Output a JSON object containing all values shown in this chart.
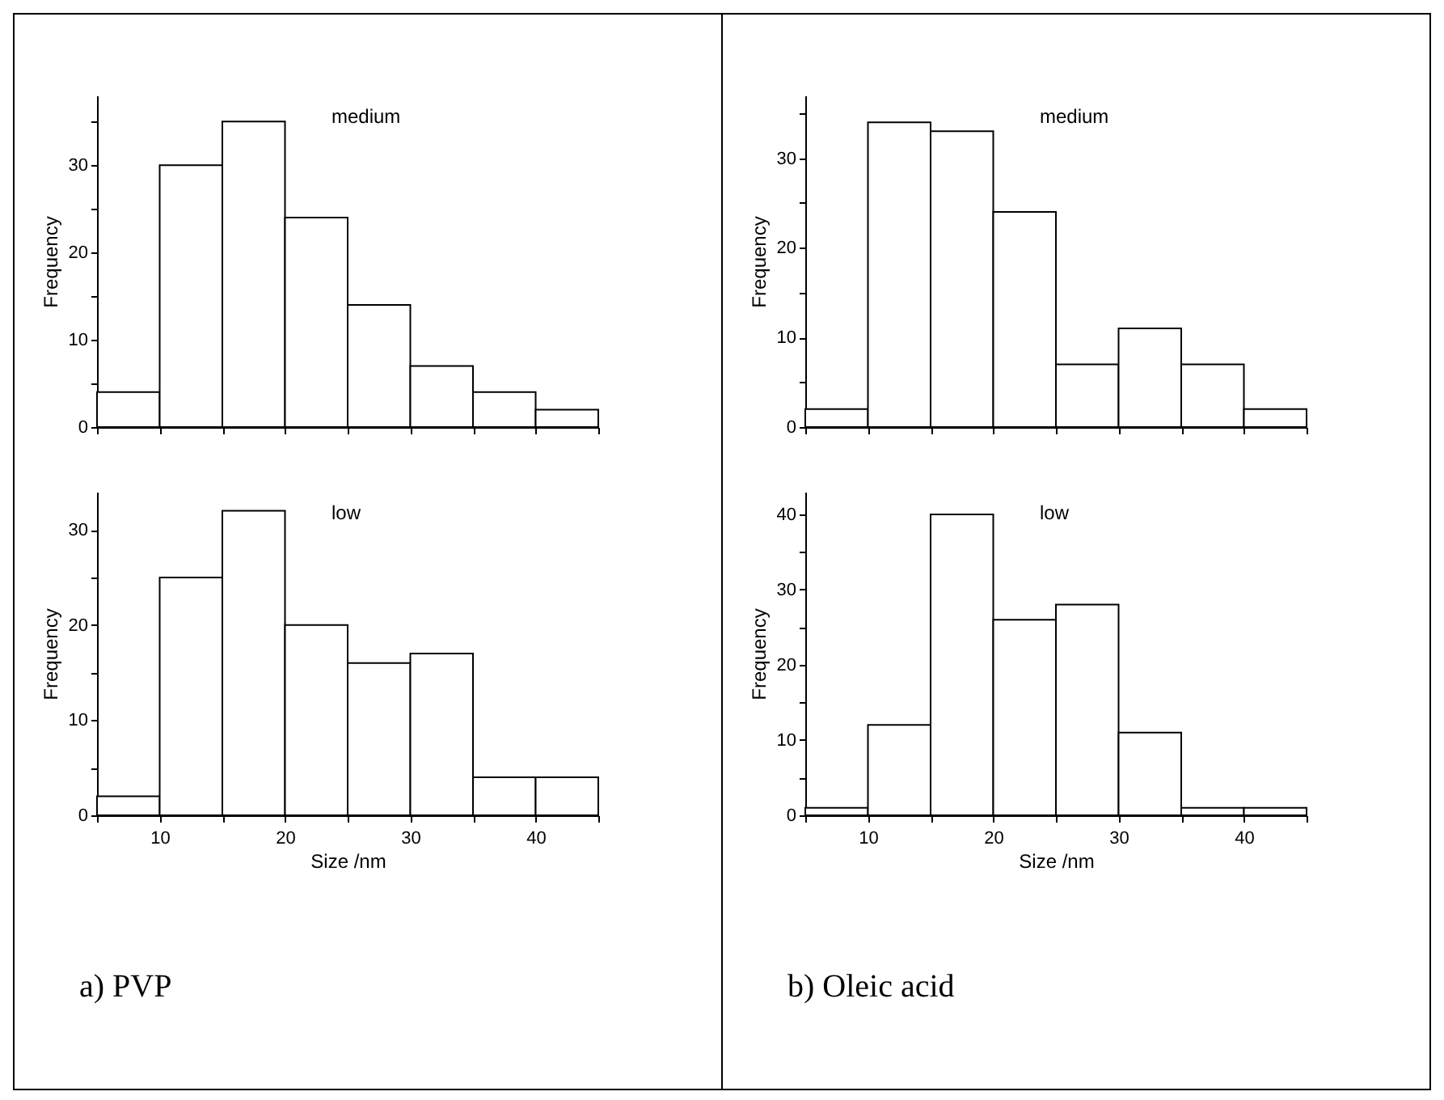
{
  "chart_data": [
    {
      "type": "histogram",
      "bins": [
        5,
        10,
        15,
        20,
        25,
        30,
        35,
        40,
        45
      ],
      "values": [
        4,
        30,
        35,
        24,
        14,
        7,
        4,
        2
      ],
      "color": "#ffffff",
      "ylabel": "Frequency",
      "annotations": [
        "medium"
      ],
      "xlim": [
        5,
        45
      ],
      "ylim": [
        0,
        38
      ],
      "xticks": [
        {
          "value": 5,
          "label": null
        },
        10,
        {
          "value": 15,
          "label": null
        },
        20,
        {
          "value": 25,
          "label": null
        },
        30,
        {
          "value": 35,
          "label": null
        },
        40,
        {
          "value": 45,
          "label": null
        }
      ],
      "yticks": [
        0,
        {
          "value": 5,
          "label": null
        },
        10,
        {
          "value": 15,
          "label": null
        },
        20,
        {
          "value": 25,
          "label": null
        },
        30,
        {
          "value": 35,
          "label": null
        }
      ],
      "tick_labels": "y",
      "grid": false
    },
    {
      "type": "histogram",
      "bins": [
        5,
        10,
        15,
        20,
        25,
        30,
        35,
        40,
        45
      ],
      "values": [
        2,
        25,
        32,
        20,
        16,
        17,
        4,
        4
      ],
      "color": "#ffffff",
      "xlabel": "Size /nm",
      "ylabel": "Frequency",
      "annotations": [
        "low",
        "a)  PVP"
      ],
      "xlim": [
        5,
        45
      ],
      "ylim": [
        0,
        34
      ],
      "xticks": [
        {
          "value": 5,
          "label": null
        },
        10,
        {
          "value": 15,
          "label": null
        },
        20,
        {
          "value": 25,
          "label": null
        },
        30,
        {
          "value": 35,
          "label": null
        },
        40,
        {
          "value": 45,
          "label": null
        }
      ],
      "yticks": [
        0,
        {
          "value": 5,
          "label": null
        },
        10,
        {
          "value": 15,
          "label": null
        },
        20,
        {
          "value": 25,
          "label": null
        },
        30
      ],
      "grid": false
    },
    {
      "type": "histogram",
      "bins": [
        5,
        10,
        15,
        20,
        25,
        30,
        35,
        40,
        45
      ],
      "values": [
        2,
        34,
        33,
        24,
        7,
        11,
        7,
        2
      ],
      "color": "#ffffff",
      "ylabel": "Frequency",
      "annotations": [
        "medium"
      ],
      "xlim": [
        5,
        45
      ],
      "ylim": [
        0,
        37
      ],
      "xticks": [
        {
          "value": 5,
          "label": null
        },
        10,
        {
          "value": 15,
          "label": null
        },
        20,
        {
          "value": 25,
          "label": null
        },
        30,
        {
          "value": 35,
          "label": null
        },
        40,
        {
          "value": 45,
          "label": null
        }
      ],
      "yticks": [
        0,
        {
          "value": 5,
          "label": null
        },
        10,
        {
          "value": 15,
          "label": null
        },
        20,
        {
          "value": 25,
          "label": null
        },
        30,
        {
          "value": 35,
          "label": null
        }
      ],
      "tick_labels": "y",
      "grid": false
    },
    {
      "type": "histogram",
      "bins": [
        5,
        10,
        15,
        20,
        25,
        30,
        35,
        40,
        45
      ],
      "values": [
        1,
        12,
        40,
        26,
        28,
        11,
        1,
        1
      ],
      "color": "#ffffff",
      "xlabel": "Size /nm",
      "ylabel": "Frequency",
      "annotations": [
        "low",
        "b)  Oleic acid"
      ],
      "xlim": [
        5,
        45
      ],
      "ylim": [
        0,
        43
      ],
      "xticks": [
        {
          "value": 5,
          "label": null
        },
        10,
        {
          "value": 15,
          "label": null
        },
        20,
        {
          "value": 25,
          "label": null
        },
        30,
        {
          "value": 35,
          "label": null
        },
        40,
        {
          "value": 45,
          "label": null
        }
      ],
      "yticks": [
        0,
        {
          "value": 5,
          "label": null
        },
        10,
        {
          "value": 15,
          "label": null
        },
        20,
        {
          "value": 25,
          "label": null
        },
        30,
        {
          "value": 35,
          "label": null
        },
        40
      ],
      "grid": false
    }
  ]
}
